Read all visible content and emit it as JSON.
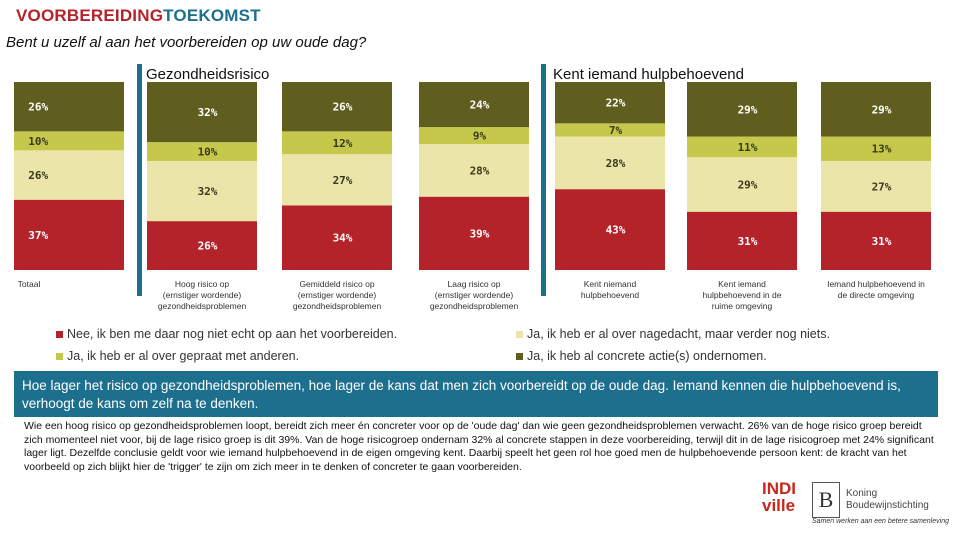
{
  "header": {
    "title_part1": "VOORBEREIDING",
    "title_part2": "TOEKOMST",
    "question": "Bent u uzelf al aan het voorbereiden op uw oude dag?"
  },
  "groups": {
    "left": "Gezondheidsrisico",
    "right": "Kent iemand hulpbehoevend"
  },
  "chart_data": {
    "type": "bar",
    "stacked": true,
    "normalized": true,
    "categories": [
      "Totaal",
      "Hoog risico op (ernstiger wordende) gezondheidsproblemen",
      "Gemiddeld risico op (ernstiger wordende) gezondheidsproblemen",
      "Laag risico op (ernstiger wordende) gezondheidsproblemen",
      "Kent niemand hulpbehoevend",
      "Kent iemand hulpbehoevend in de ruime omgeving",
      "Iemand hulpbehoevend in de directe omgeving"
    ],
    "series": [
      {
        "name": "Nee, ik ben me daar nog niet echt op aan het voorbereiden.",
        "color": "#b5232a",
        "values": [
          37,
          26,
          34,
          39,
          43,
          31,
          31
        ],
        "labels": [
          "37%",
          "26%",
          "34%",
          "39%",
          "43%",
          "31%",
          "31%"
        ]
      },
      {
        "name": "Ja, ik heb er al over nagedacht, maar verder nog niets.",
        "color": "#ebe5aa",
        "values": [
          26,
          32,
          27,
          28,
          28,
          29,
          27
        ],
        "labels": [
          "26%",
          "32%",
          "27%",
          "28%",
          "28%",
          "29%",
          "27%"
        ]
      },
      {
        "name": "Ja, ik heb er al over gepraat met anderen.",
        "color": "#c5c84a",
        "values": [
          10,
          10,
          12,
          9,
          7,
          11,
          13
        ],
        "labels": [
          "10%",
          "10%",
          "12%",
          "9%",
          "7%",
          "11%",
          "13%"
        ]
      },
      {
        "name": "Ja, ik heb al concrete actie(s) ondernomen.",
        "color": "#5f5e1f",
        "values": [
          26,
          32,
          26,
          24,
          22,
          29,
          29
        ],
        "labels": [
          "26%",
          "32%",
          "26%",
          "24%",
          "22%",
          "29%",
          "29%"
        ]
      }
    ],
    "legend_position": "bottom"
  },
  "banner": "Hoe lager het risico op gezondheidsproblemen, hoe lager de kans dat men zich voorbereidt op de oude dag. Iemand kennen die hulpbehoevend is, verhoogt de kans om zelf na te denken.",
  "body": "Wie een hoog risico op gezondheidsproblemen loopt, bereidt zich meer én concreter voor op de 'oude dag' dan wie geen gezondheidsproblemen verwacht. 26% van de hoge risico groep bereidt zich momenteel niet voor, bij de lage risico groep is dit 39%. Van de hoge risicogroep ondernam 32% al concrete stappen in deze voorbereiding, terwijl dit in de lage risicogroep met 24% significant lager ligt. Dezelfde conclusie geldt voor wie iemand hulpbehoevend in de eigen omgeving kent. Daarbij speelt het geen rol hoe goed men de hulpbehoevende persoon kent: de kracht van het voorbeeld op zich blijkt hier de 'trigger' te zijn om zich meer in te denken of concreter te gaan voorbereiden.",
  "logos": {
    "indiville_top": "INDI",
    "indiville_bottom": "ville",
    "kb_letter": "B",
    "kb_name1": "Koning",
    "kb_name2": "Boudewijnstichting",
    "kb_tagline": "Samen werken aan een betere samenleving"
  }
}
